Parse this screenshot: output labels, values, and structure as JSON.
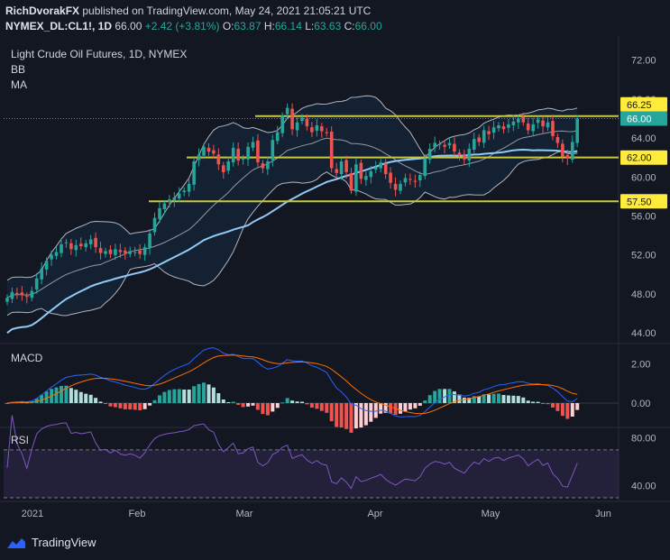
{
  "header": {
    "author": "RichDvorakFX",
    "published_text": "published on TradingView.com, May 24, 2021 21:05:21 UTC",
    "symbol_line": "NYMEX_DL:CL1!, 1D",
    "last": "66.00",
    "change": "+2.42 (+3.81%)",
    "o_label": "O:",
    "o": "63.87",
    "h_label": "H:",
    "h": "66.14",
    "l_label": "L:",
    "l": "63.63",
    "c_label": "C:",
    "c": "66.00"
  },
  "overlay": {
    "title": "Light Crude Oil Futures, 1D, NYMEX",
    "bb": "BB",
    "ma": "MA",
    "macd": "MACD",
    "rsi": "RSI"
  },
  "footer": {
    "brand": "TradingView",
    "logo_icon": "tradingview-logo-icon"
  },
  "colors": {
    "bg": "#131722",
    "up": "#26a69a",
    "down": "#ef5350",
    "ma": "#90caf9",
    "level": "#c8c83c",
    "macd": "#2962ff",
    "signal": "#ff6d00",
    "rsi": "#7e57c2",
    "label": "#ffeb3b"
  },
  "chart_data": [
    {
      "type": "candlestick",
      "ylim": [
        43,
        74
      ],
      "y_ticks": [
        "72.00",
        "68.00",
        "64.00",
        "60.00",
        "56.00",
        "52.00",
        "48.00",
        "44.00"
      ],
      "x_ticks": [
        "2021",
        "Feb",
        "Mar",
        "Apr",
        "May",
        "Jun"
      ],
      "levels": [
        {
          "label": "66.25",
          "value": 66.25
        },
        {
          "label": "62.00",
          "value": 62.0
        },
        {
          "label": "57.50",
          "value": 57.5
        }
      ],
      "last_price_label": "66.00",
      "last_price": 66.0,
      "closes": [
        47.6,
        48.2,
        48.0,
        47.9,
        47.7,
        48.3,
        49.6,
        50.6,
        51.4,
        52.0,
        52.3,
        53.1,
        53.3,
        52.6,
        53.0,
        52.9,
        53.2,
        53.6,
        52.8,
        52.2,
        52.4,
        52.1,
        52.6,
        52.3,
        52.2,
        52.4,
        52.3,
        52.1,
        52.8,
        54.2,
        55.8,
        56.8,
        57.3,
        57.7,
        57.9,
        58.3,
        58.6,
        59.3,
        61.6,
        62.3,
        63.1,
        62.6,
        62.4,
        61.3,
        60.5,
        61.6,
        63.0,
        61.7,
        61.9,
        63.1,
        63.6,
        61.5,
        60.9,
        61.6,
        63.8,
        64.6,
        66.3,
        67.1,
        64.9,
        65.6,
        66.1,
        65.2,
        64.6,
        65.3,
        64.7,
        64.5,
        60.9,
        60.4,
        61.6,
        60.5,
        58.6,
        61.3,
        59.8,
        60.1,
        60.6,
        61.0,
        61.5,
        60.3,
        59.4,
        58.7,
        59.3,
        59.9,
        59.7,
        59.5,
        60.2,
        61.9,
        62.9,
        63.5,
        63.4,
        63.1,
        63.5,
        62.6,
        62.2,
        61.8,
        62.9,
        63.9,
        63.6,
        64.8,
        64.4,
        65.1,
        65.3,
        64.9,
        65.4,
        65.7,
        66.0,
        65.6,
        64.8,
        65.4,
        65.9,
        65.2,
        65.6,
        64.2,
        63.5,
        62.1,
        61.9,
        63.6,
        66.0
      ],
      "bollinger_ma_period": 20,
      "ma_period": 50
    },
    {
      "type": "macd",
      "ylim": [
        -1.2,
        3.0
      ],
      "y_ticks": [
        "2.00",
        "0.00"
      ]
    },
    {
      "type": "rsi",
      "ylim": [
        30,
        88
      ],
      "y_ticks": [
        "80.00",
        "40.00"
      ],
      "bands": [
        70,
        30
      ]
    }
  ]
}
